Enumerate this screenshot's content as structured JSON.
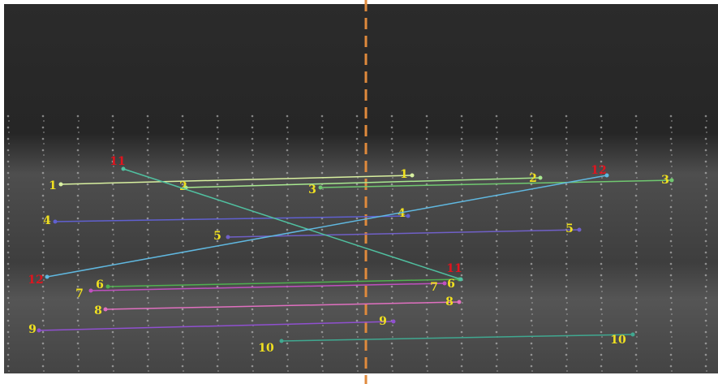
{
  "matches": [
    {
      "label": "1"
    },
    {
      "label": "2"
    },
    {
      "label": "3"
    },
    {
      "label": "4"
    },
    {
      "label": "5"
    },
    {
      "label": "6"
    },
    {
      "label": "7"
    },
    {
      "label": "8"
    },
    {
      "label": "9"
    },
    {
      "label": "10"
    },
    {
      "label": "11"
    },
    {
      "label": "12"
    }
  ]
}
